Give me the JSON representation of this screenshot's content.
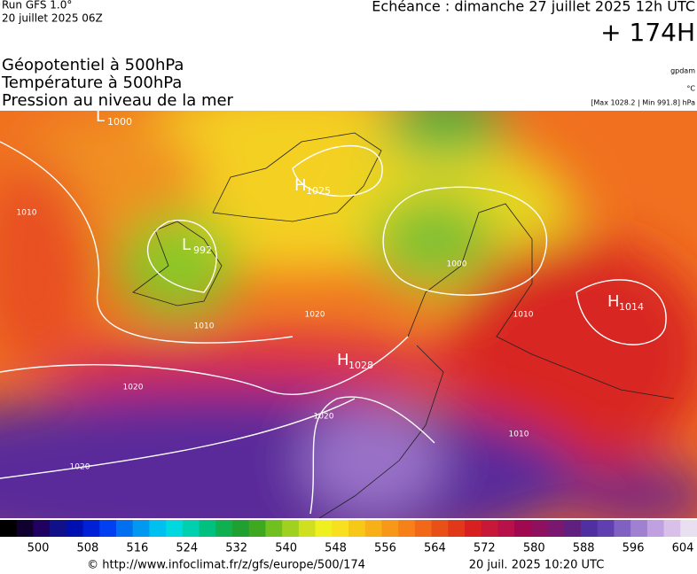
{
  "header": {
    "run": "Run GFS 1.0°",
    "run_date": "20 juillet 2025 06Z",
    "valid_time": "Echéance : dimanche 27 juillet 2025 12h UTC",
    "lead": "+ 174H",
    "fields": [
      "Géopotentiel à 500hPa",
      "Température à 500hPa",
      "Pression au niveau de la mer"
    ],
    "unit_geopotential": "gpdam",
    "unit_temperature": "°C",
    "pressure_range": "[Max 1028.2 | Min 991.8] hPa"
  },
  "map": {
    "centers": [
      {
        "letter": "L",
        "value": "1000"
      },
      {
        "letter": "H",
        "value": "1025"
      },
      {
        "letter": "L",
        "value": "992"
      },
      {
        "letter": "H",
        "value": "1028"
      },
      {
        "letter": "H",
        "value": "1014"
      }
    ],
    "isobar_labels": [
      "1010",
      "1010",
      "1020",
      "1020",
      "1020",
      "1020",
      "1010",
      "1000",
      "1010"
    ]
  },
  "colorbar": {
    "ticks": [
      500,
      508,
      516,
      524,
      532,
      540,
      548,
      556,
      564,
      572,
      580,
      588,
      596,
      604
    ]
  },
  "footer": {
    "source": "© http://www.infoclimat.fr/z/gfs/europe/500/174",
    "generated": "20 juil. 2025 10:20 UTC"
  }
}
